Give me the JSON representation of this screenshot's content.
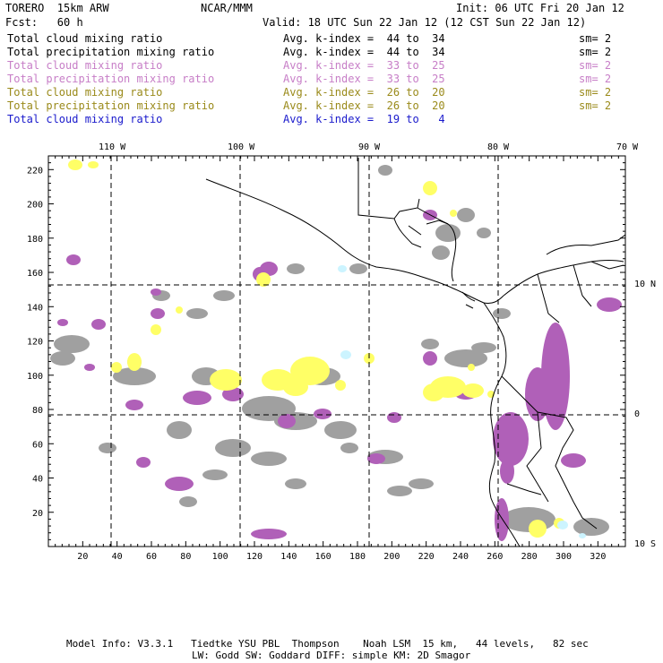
{
  "header": {
    "model": "TORERO  15km ARW",
    "org": "NCAR/MMM",
    "init": "Init: 06 UTC Fri 20 Jan 12",
    "fcst": "Fcst:   60 h",
    "valid": "Valid: 18 UTC Sun 22 Jan 12 (12 CST Sun 22 Jan 12)"
  },
  "legend": [
    {
      "field": "Total cloud mixing ratio",
      "kindex": "Avg. k-index =  44 to  34",
      "sm": "sm= 2",
      "color": "#000000"
    },
    {
      "field": "Total precipitation mixing ratio",
      "kindex": "Avg. k-index =  44 to  34",
      "sm": "sm= 2",
      "color": "#000000"
    },
    {
      "field": "Total cloud mixing ratio",
      "kindex": "Avg. k-index =  33 to  25",
      "sm": "sm= 2",
      "color": "#c77ec7"
    },
    {
      "field": "Total precipitation mixing ratio",
      "kindex": "Avg. k-index =  33 to  25",
      "sm": "sm= 2",
      "color": "#c77ec7"
    },
    {
      "field": "Total cloud mixing ratio",
      "kindex": "Avg. k-index =  26 to  20",
      "sm": "sm= 2",
      "color": "#9a8a1a"
    },
    {
      "field": "Total precipitation mixing ratio",
      "kindex": "Avg. k-index =  26 to  20",
      "sm": "sm= 2",
      "color": "#9a8a1a"
    },
    {
      "field": "Total cloud mixing ratio",
      "kindex": "Avg. k-index =  19 to   4",
      "sm": "",
      "color": "#1a1acc"
    }
  ],
  "map": {
    "lon_labels": [
      "110 W",
      "100 W",
      "90 W",
      "80 W",
      "70 W"
    ],
    "lat_labels": [
      "10 N",
      "0",
      "10 S"
    ],
    "x_ticks": [
      "20",
      "40",
      "60",
      "80",
      "100",
      "120",
      "140",
      "160",
      "180",
      "200",
      "220",
      "240",
      "260",
      "280",
      "300",
      "320"
    ],
    "y_ticks": [
      "20",
      "40",
      "60",
      "80",
      "100",
      "120",
      "140",
      "160",
      "180",
      "200",
      "220"
    ],
    "colors": {
      "purple": "#b060b8",
      "yellow": "#ffff66",
      "gray": "#a0a0a0",
      "cyan": "#ccf4ff"
    }
  },
  "footer": {
    "line1": "Model Info: V3.3.1   Tiedtke YSU PBL  Thompson    Noah LSM  15 km,   44 levels,   82 sec",
    "line2": "LW: Godd SW: Goddard DIFF: simple KM: 2D Smagor"
  }
}
